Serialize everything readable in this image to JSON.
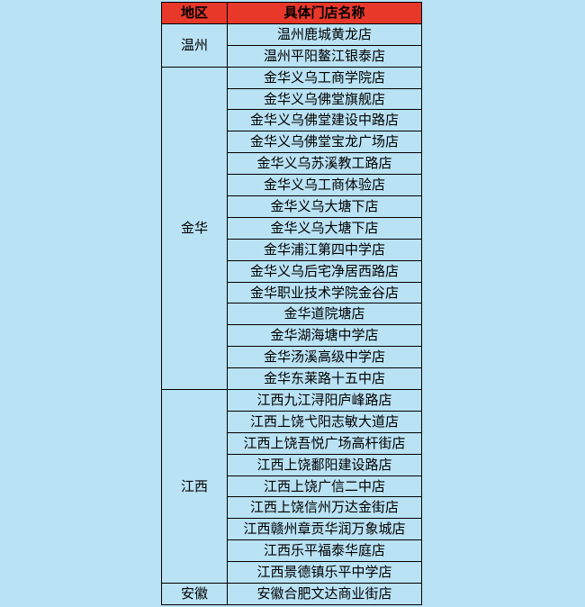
{
  "page": {
    "background_color": "#b9e2f4"
  },
  "table": {
    "header": {
      "region_label": "地区",
      "store_label": "具体门店名称"
    },
    "colors": {
      "header_bg": "#e8382a",
      "cell_bg": "#b9e2f4",
      "border": "#000000",
      "text": "#000000"
    },
    "groups": [
      {
        "region": "温州",
        "stores": [
          "温州鹿城黄龙店",
          "温州平阳鳌江银泰店"
        ]
      },
      {
        "region": "金华",
        "stores": [
          "金华义乌工商学院店",
          "金华义乌佛堂旗舰店",
          "金华义乌佛堂建设中路店",
          "金华义乌佛堂宝龙广场店",
          "金华义乌苏溪教工路店",
          "金华义乌工商体验店",
          "金华义乌大塘下店",
          "金华义乌大塘下店",
          "金华浦江第四中学店",
          "金华义乌后宅净居西路店",
          "金华职业技术学院金谷店",
          "金华道院塘店",
          "金华湖海塘中学店",
          "金华汤溪高级中学店",
          "金华东莱路十五中店"
        ]
      },
      {
        "region": "江西",
        "stores": [
          "江西九江浔阳庐峰路店",
          "江西上饶弋阳志敏大道店",
          "江西上饶吾悦广场高杆街店",
          "江西上饶鄱阳建设路店",
          "江西上饶广信二中店",
          "江西上饶信州万达金街店",
          "江西赣州章贡华润万象城店",
          "江西乐平福泰华庭店",
          "江西景德镇乐平中学店"
        ]
      },
      {
        "region": "安徽",
        "stores": [
          "安徽合肥文达商业街店"
        ]
      }
    ]
  }
}
